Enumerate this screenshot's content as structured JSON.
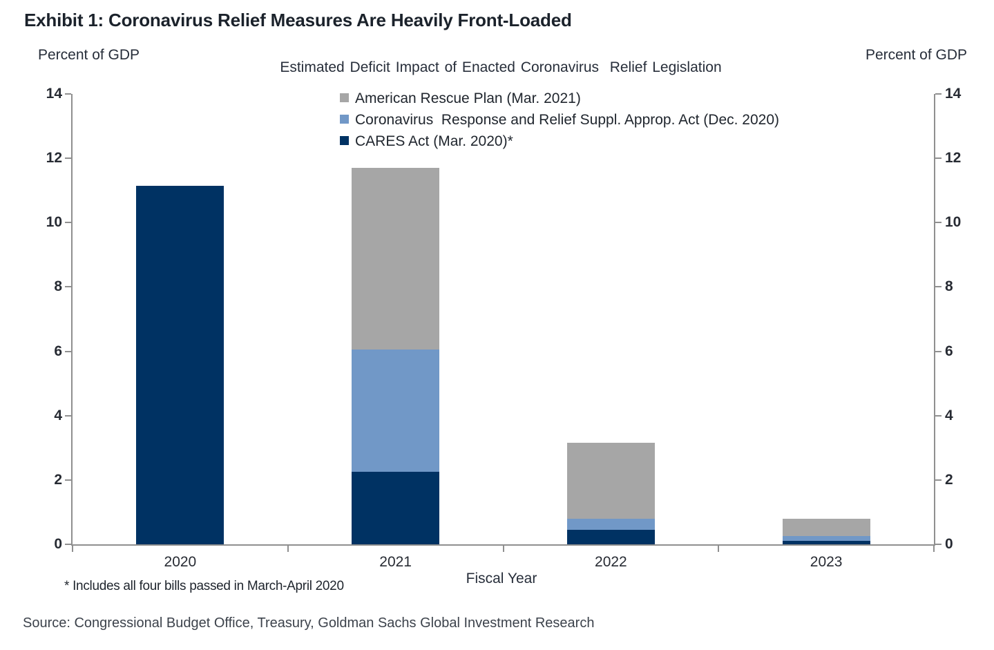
{
  "header": {
    "title": "Exhibit 1: Coronavirus Relief Measures Are Heavily Front-Loaded"
  },
  "chart": {
    "left_unit_label": "Percent of GDP",
    "right_unit_label": "Percent of GDP",
    "footnote": "* Includes all four bills passed in March-April 2020"
  },
  "footer": {
    "source": "Source: Congressional Budget Office, Treasury, Goldman Sachs Global Investment Research"
  },
  "chart_data": {
    "type": "bar",
    "stacked": true,
    "title": "Estimated Deficit Impact of Enacted Coronavirus  Relief Legislation",
    "categories": [
      "2020",
      "2021",
      "2022",
      "2023"
    ],
    "series": [
      {
        "name": "American Rescue Plan (Mar. 2021)",
        "color": "#a6a6a6",
        "values": [
          0,
          5.65,
          2.35,
          0.55
        ]
      },
      {
        "name": "Coronavirus  Response and Relief Suppl. Approp. Act (Dec. 2020)",
        "color": "#7198c7",
        "values": [
          0,
          3.8,
          0.35,
          0.15
        ]
      },
      {
        "name": "CARES Act (Mar. 2020)*",
        "color": "#003263",
        "values": [
          11.15,
          2.25,
          0.45,
          0.1
        ]
      }
    ],
    "xlabel": "Fiscal Year",
    "ylabel": "Percent of GDP",
    "ylim": [
      0,
      14
    ],
    "ytick_step": 2,
    "yticks": [
      0,
      2,
      4,
      6,
      8,
      10,
      12,
      14
    ],
    "legend_position": "top-center",
    "grid": false,
    "axis_color": "#8f8f8f"
  }
}
